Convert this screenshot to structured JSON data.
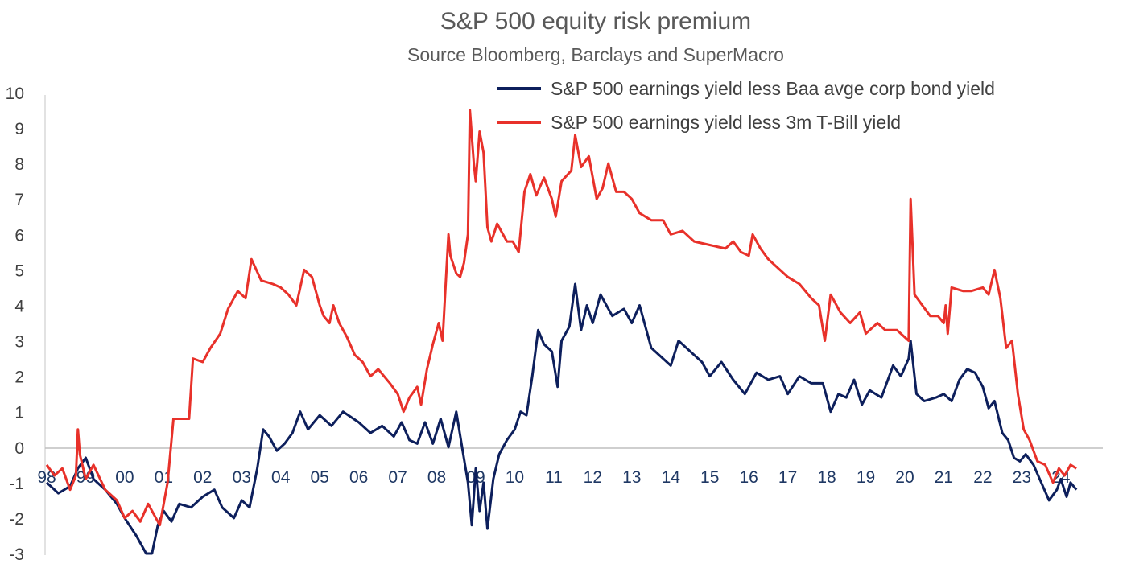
{
  "chart_data": {
    "type": "line",
    "title": "S&P 500 equity risk premium",
    "subtitle": "Source Bloomberg, Barclays and SuperMacro",
    "xlabel": "",
    "ylabel": "",
    "xlim": [
      1998.0,
      2024.5
    ],
    "ylim": [
      -3,
      10
    ],
    "yticks": [
      "10",
      "9",
      "8",
      "7",
      "6",
      "5",
      "4",
      "3",
      "2",
      "1",
      "0",
      "-1",
      "-2",
      "-3"
    ],
    "xticks": [
      {
        "label": "98",
        "x": 1998.0
      },
      {
        "label": "99",
        "x": 1999.0
      },
      {
        "label": "00",
        "x": 2000.0
      },
      {
        "label": "01",
        "x": 2001.0
      },
      {
        "label": "02",
        "x": 2002.0
      },
      {
        "label": "03",
        "x": 2003.0
      },
      {
        "label": "04",
        "x": 2004.0
      },
      {
        "label": "05",
        "x": 2005.0
      },
      {
        "label": "06",
        "x": 2006.0
      },
      {
        "label": "07",
        "x": 2007.0
      },
      {
        "label": "08",
        "x": 2008.0
      },
      {
        "label": "09",
        "x": 2009.0
      },
      {
        "label": "10",
        "x": 2010.0
      },
      {
        "label": "11",
        "x": 2011.0
      },
      {
        "label": "12",
        "x": 2012.0
      },
      {
        "label": "13",
        "x": 2013.0
      },
      {
        "label": "14",
        "x": 2014.0
      },
      {
        "label": "15",
        "x": 2015.0
      },
      {
        "label": "16",
        "x": 2016.0
      },
      {
        "label": "17",
        "x": 2017.0
      },
      {
        "label": "18",
        "x": 2018.0
      },
      {
        "label": "19",
        "x": 2019.0
      },
      {
        "label": "20",
        "x": 2020.0
      },
      {
        "label": "21",
        "x": 2021.0
      },
      {
        "label": "22",
        "x": 2022.0
      },
      {
        "label": "23",
        "x": 2023.0
      },
      {
        "label": "24",
        "x": 2024.0
      }
    ],
    "grid": false,
    "legend": "top-right",
    "series": [
      {
        "name": "S&P 500 earnings yield less  Baa avge corp bond yield",
        "color": "#0d1f5c",
        "points": [
          [
            1998.0,
            -1.0
          ],
          [
            1998.3,
            -1.3
          ],
          [
            1998.6,
            -1.1
          ],
          [
            1998.8,
            -0.6
          ],
          [
            1999.0,
            -0.3
          ],
          [
            1999.2,
            -0.9
          ],
          [
            1999.5,
            -1.2
          ],
          [
            1999.8,
            -1.6
          ],
          [
            2000.0,
            -2.0
          ],
          [
            2000.3,
            -2.5
          ],
          [
            2000.55,
            -3.0
          ],
          [
            2000.7,
            -3.0
          ],
          [
            2000.85,
            -2.2
          ],
          [
            2001.0,
            -1.8
          ],
          [
            2001.2,
            -2.1
          ],
          [
            2001.4,
            -1.6
          ],
          [
            2001.7,
            -1.7
          ],
          [
            2002.0,
            -1.4
          ],
          [
            2002.3,
            -1.2
          ],
          [
            2002.5,
            -1.7
          ],
          [
            2002.8,
            -2.0
          ],
          [
            2003.0,
            -1.5
          ],
          [
            2003.2,
            -1.7
          ],
          [
            2003.4,
            -0.6
          ],
          [
            2003.55,
            0.5
          ],
          [
            2003.7,
            0.3
          ],
          [
            2003.9,
            -0.1
          ],
          [
            2004.1,
            0.1
          ],
          [
            2004.3,
            0.4
          ],
          [
            2004.5,
            1.0
          ],
          [
            2004.7,
            0.5
          ],
          [
            2005.0,
            0.9
          ],
          [
            2005.3,
            0.6
          ],
          [
            2005.6,
            1.0
          ],
          [
            2006.0,
            0.7
          ],
          [
            2006.3,
            0.4
          ],
          [
            2006.6,
            0.6
          ],
          [
            2006.9,
            0.3
          ],
          [
            2007.1,
            0.7
          ],
          [
            2007.3,
            0.2
          ],
          [
            2007.5,
            0.1
          ],
          [
            2007.7,
            0.7
          ],
          [
            2007.9,
            0.1
          ],
          [
            2008.1,
            0.8
          ],
          [
            2008.3,
            0.0
          ],
          [
            2008.5,
            1.0
          ],
          [
            2008.65,
            0.0
          ],
          [
            2008.8,
            -1.0
          ],
          [
            2008.9,
            -2.2
          ],
          [
            2009.0,
            -0.6
          ],
          [
            2009.1,
            -1.8
          ],
          [
            2009.2,
            -1.0
          ],
          [
            2009.3,
            -2.3
          ],
          [
            2009.45,
            -0.9
          ],
          [
            2009.6,
            -0.2
          ],
          [
            2009.8,
            0.2
          ],
          [
            2010.0,
            0.5
          ],
          [
            2010.15,
            1.0
          ],
          [
            2010.3,
            0.9
          ],
          [
            2010.45,
            2.0
          ],
          [
            2010.6,
            3.3
          ],
          [
            2010.75,
            2.9
          ],
          [
            2010.95,
            2.7
          ],
          [
            2011.1,
            1.7
          ],
          [
            2011.2,
            3.0
          ],
          [
            2011.4,
            3.4
          ],
          [
            2011.55,
            4.6
          ],
          [
            2011.7,
            3.3
          ],
          [
            2011.85,
            4.0
          ],
          [
            2012.0,
            3.5
          ],
          [
            2012.2,
            4.3
          ],
          [
            2012.5,
            3.7
          ],
          [
            2012.8,
            3.9
          ],
          [
            2013.0,
            3.5
          ],
          [
            2013.2,
            4.0
          ],
          [
            2013.5,
            2.8
          ],
          [
            2013.8,
            2.5
          ],
          [
            2014.0,
            2.3
          ],
          [
            2014.2,
            3.0
          ],
          [
            2014.5,
            2.7
          ],
          [
            2014.8,
            2.4
          ],
          [
            2015.0,
            2.0
          ],
          [
            2015.3,
            2.4
          ],
          [
            2015.6,
            1.9
          ],
          [
            2015.9,
            1.5
          ],
          [
            2016.2,
            2.1
          ],
          [
            2016.5,
            1.9
          ],
          [
            2016.8,
            2.0
          ],
          [
            2017.0,
            1.5
          ],
          [
            2017.3,
            2.0
          ],
          [
            2017.6,
            1.8
          ],
          [
            2017.9,
            1.8
          ],
          [
            2018.1,
            1.0
          ],
          [
            2018.3,
            1.5
          ],
          [
            2018.5,
            1.4
          ],
          [
            2018.7,
            1.9
          ],
          [
            2018.9,
            1.2
          ],
          [
            2019.1,
            1.6
          ],
          [
            2019.4,
            1.4
          ],
          [
            2019.7,
            2.3
          ],
          [
            2019.9,
            2.0
          ],
          [
            2020.1,
            2.5
          ],
          [
            2020.15,
            3.0
          ],
          [
            2020.3,
            1.5
          ],
          [
            2020.5,
            1.3
          ],
          [
            2020.8,
            1.4
          ],
          [
            2021.0,
            1.5
          ],
          [
            2021.2,
            1.3
          ],
          [
            2021.4,
            1.9
          ],
          [
            2021.6,
            2.2
          ],
          [
            2021.8,
            2.1
          ],
          [
            2022.0,
            1.7
          ],
          [
            2022.15,
            1.1
          ],
          [
            2022.3,
            1.3
          ],
          [
            2022.5,
            0.4
          ],
          [
            2022.65,
            0.2
          ],
          [
            2022.8,
            -0.3
          ],
          [
            2022.95,
            -0.4
          ],
          [
            2023.1,
            -0.2
          ],
          [
            2023.3,
            -0.5
          ],
          [
            2023.5,
            -1.0
          ],
          [
            2023.7,
            -1.5
          ],
          [
            2023.9,
            -1.2
          ],
          [
            2024.0,
            -0.9
          ],
          [
            2024.15,
            -1.4
          ],
          [
            2024.25,
            -1.0
          ],
          [
            2024.4,
            -1.2
          ]
        ]
      },
      {
        "name": "S&P 500 earnings yield less 3m T-Bill yield",
        "color": "#e8312a",
        "points": [
          [
            1998.0,
            -0.5
          ],
          [
            1998.2,
            -0.8
          ],
          [
            1998.4,
            -0.6
          ],
          [
            1998.6,
            -1.2
          ],
          [
            1998.75,
            -0.8
          ],
          [
            1998.8,
            0.5
          ],
          [
            1998.85,
            -0.2
          ],
          [
            1999.0,
            -0.9
          ],
          [
            1999.2,
            -0.5
          ],
          [
            1999.5,
            -1.2
          ],
          [
            1999.8,
            -1.5
          ],
          [
            2000.0,
            -2.0
          ],
          [
            2000.2,
            -1.8
          ],
          [
            2000.4,
            -2.1
          ],
          [
            2000.6,
            -1.6
          ],
          [
            2000.9,
            -2.2
          ],
          [
            2001.1,
            -1.0
          ],
          [
            2001.25,
            0.8
          ],
          [
            2001.5,
            0.8
          ],
          [
            2001.65,
            0.8
          ],
          [
            2001.75,
            2.5
          ],
          [
            2002.0,
            2.4
          ],
          [
            2002.2,
            2.8
          ],
          [
            2002.45,
            3.2
          ],
          [
            2002.65,
            3.9
          ],
          [
            2002.9,
            4.4
          ],
          [
            2003.1,
            4.2
          ],
          [
            2003.25,
            5.3
          ],
          [
            2003.5,
            4.7
          ],
          [
            2003.8,
            4.6
          ],
          [
            2004.0,
            4.5
          ],
          [
            2004.2,
            4.3
          ],
          [
            2004.4,
            4.0
          ],
          [
            2004.6,
            5.0
          ],
          [
            2004.8,
            4.8
          ],
          [
            2005.0,
            4.0
          ],
          [
            2005.1,
            3.7
          ],
          [
            2005.25,
            3.5
          ],
          [
            2005.35,
            4.0
          ],
          [
            2005.5,
            3.5
          ],
          [
            2005.7,
            3.1
          ],
          [
            2005.9,
            2.6
          ],
          [
            2006.1,
            2.4
          ],
          [
            2006.3,
            2.0
          ],
          [
            2006.5,
            2.2
          ],
          [
            2006.8,
            1.8
          ],
          [
            2007.0,
            1.5
          ],
          [
            2007.15,
            1.0
          ],
          [
            2007.3,
            1.4
          ],
          [
            2007.5,
            1.7
          ],
          [
            2007.6,
            1.2
          ],
          [
            2007.75,
            2.2
          ],
          [
            2007.9,
            2.9
          ],
          [
            2008.05,
            3.5
          ],
          [
            2008.15,
            3.0
          ],
          [
            2008.25,
            5.0
          ],
          [
            2008.3,
            6.0
          ],
          [
            2008.35,
            5.4
          ],
          [
            2008.5,
            4.9
          ],
          [
            2008.6,
            4.8
          ],
          [
            2008.7,
            5.2
          ],
          [
            2008.8,
            6.0
          ],
          [
            2008.85,
            9.5
          ],
          [
            2008.95,
            8.0
          ],
          [
            2009.0,
            7.5
          ],
          [
            2009.1,
            8.9
          ],
          [
            2009.2,
            8.3
          ],
          [
            2009.3,
            6.2
          ],
          [
            2009.4,
            5.8
          ],
          [
            2009.55,
            6.3
          ],
          [
            2009.8,
            5.8
          ],
          [
            2009.95,
            5.8
          ],
          [
            2010.1,
            5.5
          ],
          [
            2010.25,
            7.2
          ],
          [
            2010.4,
            7.7
          ],
          [
            2010.55,
            7.1
          ],
          [
            2010.75,
            7.6
          ],
          [
            2010.95,
            7.0
          ],
          [
            2011.05,
            6.5
          ],
          [
            2011.2,
            7.5
          ],
          [
            2011.45,
            7.8
          ],
          [
            2011.55,
            8.8
          ],
          [
            2011.7,
            7.9
          ],
          [
            2011.9,
            8.2
          ],
          [
            2012.1,
            7.0
          ],
          [
            2012.25,
            7.3
          ],
          [
            2012.4,
            8.0
          ],
          [
            2012.6,
            7.2
          ],
          [
            2012.8,
            7.2
          ],
          [
            2013.0,
            7.0
          ],
          [
            2013.2,
            6.6
          ],
          [
            2013.5,
            6.4
          ],
          [
            2013.8,
            6.4
          ],
          [
            2014.0,
            6.0
          ],
          [
            2014.3,
            6.1
          ],
          [
            2014.6,
            5.8
          ],
          [
            2015.0,
            5.7
          ],
          [
            2015.4,
            5.6
          ],
          [
            2015.6,
            5.8
          ],
          [
            2015.8,
            5.5
          ],
          [
            2016.0,
            5.4
          ],
          [
            2016.1,
            6.0
          ],
          [
            2016.3,
            5.6
          ],
          [
            2016.5,
            5.3
          ],
          [
            2016.8,
            5.0
          ],
          [
            2017.0,
            4.8
          ],
          [
            2017.3,
            4.6
          ],
          [
            2017.6,
            4.2
          ],
          [
            2017.8,
            4.0
          ],
          [
            2017.95,
            3.0
          ],
          [
            2018.1,
            4.3
          ],
          [
            2018.35,
            3.8
          ],
          [
            2018.6,
            3.5
          ],
          [
            2018.85,
            3.8
          ],
          [
            2019.0,
            3.2
          ],
          [
            2019.3,
            3.5
          ],
          [
            2019.5,
            3.3
          ],
          [
            2019.8,
            3.3
          ],
          [
            2020.0,
            3.1
          ],
          [
            2020.1,
            3.0
          ],
          [
            2020.15,
            7.0
          ],
          [
            2020.25,
            4.3
          ],
          [
            2020.45,
            4.0
          ],
          [
            2020.65,
            3.7
          ],
          [
            2020.85,
            3.7
          ],
          [
            2021.0,
            3.5
          ],
          [
            2021.05,
            4.0
          ],
          [
            2021.1,
            3.2
          ],
          [
            2021.2,
            4.5
          ],
          [
            2021.5,
            4.4
          ],
          [
            2021.7,
            4.4
          ],
          [
            2022.0,
            4.5
          ],
          [
            2022.15,
            4.3
          ],
          [
            2022.3,
            5.0
          ],
          [
            2022.45,
            4.2
          ],
          [
            2022.6,
            2.8
          ],
          [
            2022.75,
            3.0
          ],
          [
            2022.9,
            1.5
          ],
          [
            2023.05,
            0.5
          ],
          [
            2023.2,
            0.2
          ],
          [
            2023.4,
            -0.4
          ],
          [
            2023.6,
            -0.5
          ],
          [
            2023.8,
            -1.0
          ],
          [
            2023.95,
            -0.6
          ],
          [
            2024.1,
            -0.8
          ],
          [
            2024.25,
            -0.5
          ],
          [
            2024.4,
            -0.6
          ]
        ]
      }
    ]
  }
}
